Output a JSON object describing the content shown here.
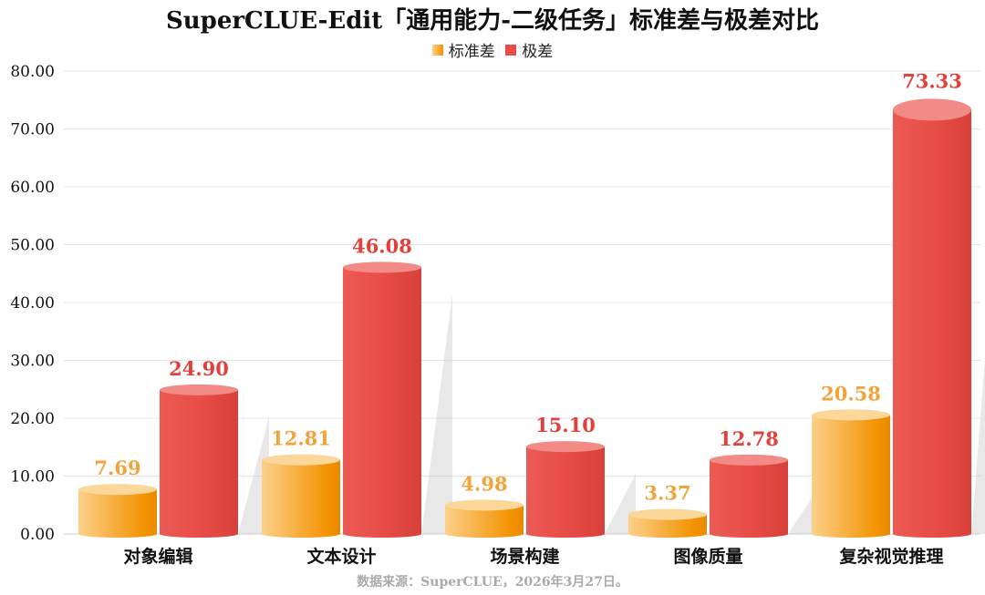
{
  "title": "SuperCLUE-Edit「通用能力-二级任务」标准差与极差对比",
  "source_note": "数据来源：SuperCLUE，2026年3月27日。",
  "colors": {
    "std_dev_dark": "#f39200",
    "std_dev_light": "#fcd08a",
    "range_main": "#e84d47",
    "range_top": "#f28b86",
    "std_dev_label": "#f2a33a",
    "range_label": "#e2413b",
    "grid": "#e6e6e6",
    "axis_text": "#111111"
  },
  "chart_data": {
    "type": "bar",
    "categories": [
      "对象编辑",
      "文本设计",
      "场景构建",
      "图像质量",
      "复杂视觉推理"
    ],
    "series": [
      {
        "name": "标准差",
        "values": [
          7.69,
          12.81,
          4.98,
          3.37,
          20.58
        ]
      },
      {
        "name": "极差",
        "values": [
          24.9,
          46.08,
          15.1,
          12.78,
          73.33
        ]
      }
    ],
    "ylim": [
      0,
      80
    ],
    "yticks": [
      "0.00",
      "10.00",
      "20.00",
      "30.00",
      "40.00",
      "50.00",
      "60.00",
      "70.00",
      "80.00"
    ],
    "data_labels": [
      [
        "7.69",
        "12.81",
        "4.98",
        "3.37",
        "20.58"
      ],
      [
        "24.90",
        "46.08",
        "15.10",
        "12.78",
        "73.33"
      ]
    ],
    "xlabel": "",
    "ylabel": "",
    "grid": true,
    "legend_position": "top-center"
  }
}
